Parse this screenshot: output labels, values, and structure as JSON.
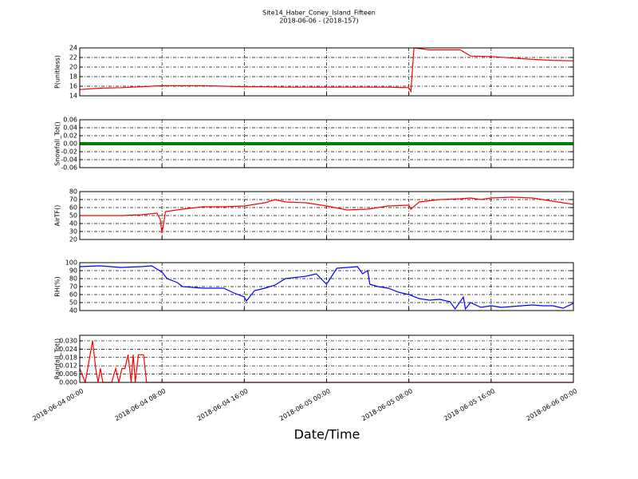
{
  "title": "Site14_Haber_Coney_Island_Fifteen",
  "subtitle": "2018-06-06 - (2018-157)",
  "xlabel": "Date/Time",
  "xlim": [
    "2018-06-04 00:00",
    "2018-06-06 00:00"
  ],
  "xticks": [
    "2018-06-04 00:00",
    "2018-06-04 08:00",
    "2018-06-04 16:00",
    "2018-06-05 00:00",
    "2018-06-05 08:00",
    "2018-06-05 16:00",
    "2018-06-06 00:00"
  ],
  "chart_data": [
    {
      "type": "line",
      "ylabel": "P(unitless)",
      "ylim": [
        14,
        24
      ],
      "yticks": [
        14,
        16,
        18,
        20,
        22,
        24
      ],
      "grid": true,
      "x": [
        "2018-06-04 00:00",
        "2018-06-04 02:00",
        "2018-06-04 04:00",
        "2018-06-04 06:00",
        "2018-06-04 08:00",
        "2018-06-04 10:00",
        "2018-06-04 12:00",
        "2018-06-04 14:00",
        "2018-06-04 16:00",
        "2018-06-04 18:00",
        "2018-06-04 20:00",
        "2018-06-04 22:00",
        "2018-06-05 00:00",
        "2018-06-05 02:00",
        "2018-06-05 04:00",
        "2018-06-05 06:00",
        "2018-06-05 08:00",
        "2018-06-05 08:12",
        "2018-06-05 08:30",
        "2018-06-05 10:00",
        "2018-06-05 12:00",
        "2018-06-05 13:00",
        "2018-06-05 14:00",
        "2018-06-05 16:00",
        "2018-06-05 18:00",
        "2018-06-05 20:00",
        "2018-06-05 22:00",
        "2018-06-06 00:00"
      ],
      "series": [
        {
          "color": "#ff0000",
          "values": [
            15.3,
            15.6,
            15.7,
            15.9,
            16.1,
            16.1,
            16.1,
            16.0,
            15.9,
            15.9,
            15.8,
            15.8,
            15.8,
            15.8,
            15.8,
            15.8,
            15.7,
            14.9,
            24,
            23.6,
            23.6,
            23.6,
            22.3,
            22.2,
            21.9,
            21.6,
            21.4,
            21.3
          ]
        }
      ]
    },
    {
      "type": "line",
      "ylabel": "Snowfall_Tot()",
      "ylim": [
        -0.06,
        0.06
      ],
      "yticks": [
        -0.06,
        -0.04,
        -0.02,
        {
          "value": 0,
          "label": "0.00"
        },
        0.02,
        0.04,
        0.06
      ],
      "grid": true,
      "x": [
        "2018-06-04 00:00",
        "2018-06-04 08:00",
        "2018-06-04 16:00",
        "2018-06-05 00:00",
        "2018-06-05 08:00",
        "2018-06-05 16:00",
        "2018-06-06 00:00"
      ],
      "series": [
        {
          "color": "#008000",
          "values": [
            0,
            0,
            0,
            0,
            0,
            0,
            0
          ]
        }
      ]
    },
    {
      "type": "line",
      "ylabel": "AirTF()",
      "ylim": [
        20,
        80
      ],
      "yticks": [
        20,
        30,
        40,
        50,
        60,
        70,
        80
      ],
      "grid": true,
      "x": [
        "2018-06-04 00:00",
        "2018-06-04 02:00",
        "2018-06-04 04:00",
        "2018-06-04 06:00",
        "2018-06-04 07:30",
        "2018-06-04 07:50",
        "2018-06-04 08:00",
        "2018-06-04 08:20",
        "2018-06-04 10:00",
        "2018-06-04 12:00",
        "2018-06-04 14:00",
        "2018-06-04 16:00",
        "2018-06-04 18:00",
        "2018-06-04 19:00",
        "2018-06-04 20:00",
        "2018-06-04 22:00",
        "2018-06-05 00:00",
        "2018-06-05 02:00",
        "2018-06-05 04:00",
        "2018-06-05 06:00",
        "2018-06-05 08:00",
        "2018-06-05 08:12",
        "2018-06-05 09:00",
        "2018-06-05 11:00",
        "2018-06-05 13:00",
        "2018-06-05 14:00",
        "2018-06-05 15:00",
        "2018-06-05 16:00",
        "2018-06-05 18:00",
        "2018-06-05 20:00",
        "2018-06-05 22:00",
        "2018-06-06 00:00"
      ],
      "series": [
        {
          "color": "#ff0000",
          "values": [
            50,
            50,
            50,
            51,
            53,
            45,
            28,
            55,
            58,
            61,
            61,
            62,
            66,
            70,
            67,
            66,
            62,
            57,
            58,
            62,
            63,
            58,
            67,
            70,
            71,
            72,
            70,
            72,
            73,
            72,
            68,
            64
          ]
        }
      ]
    },
    {
      "type": "line",
      "ylabel": "RH(%)",
      "ylim": [
        40,
        100
      ],
      "yticks": [
        40,
        50,
        60,
        70,
        80,
        90,
        100
      ],
      "grid": true,
      "x": [
        "2018-06-04 00:00",
        "2018-06-04 02:00",
        "2018-06-04 04:00",
        "2018-06-04 06:00",
        "2018-06-04 07:00",
        "2018-06-04 08:00",
        "2018-06-04 08:30",
        "2018-06-04 09:30",
        "2018-06-04 10:00",
        "2018-06-04 12:00",
        "2018-06-04 14:00",
        "2018-06-04 15:00",
        "2018-06-04 16:00",
        "2018-06-04 16:12",
        "2018-06-04 17:00",
        "2018-06-04 18:00",
        "2018-06-04 19:00",
        "2018-06-04 20:00",
        "2018-06-04 22:00",
        "2018-06-04 23:00",
        "2018-06-05 00:00",
        "2018-06-05 01:00",
        "2018-06-05 02:00",
        "2018-06-05 03:00",
        "2018-06-05 03:30",
        "2018-06-05 04:00",
        "2018-06-05 04:12",
        "2018-06-05 05:00",
        "2018-06-05 06:00",
        "2018-06-05 07:00",
        "2018-06-05 08:00",
        "2018-06-05 09:00",
        "2018-06-05 10:00",
        "2018-06-05 11:00",
        "2018-06-05 12:00",
        "2018-06-05 12:30",
        "2018-06-05 13:18",
        "2018-06-05 13:30",
        "2018-06-05 14:00",
        "2018-06-05 15:00",
        "2018-06-05 16:00",
        "2018-06-05 17:00",
        "2018-06-05 18:00",
        "2018-06-05 19:00",
        "2018-06-05 20:00",
        "2018-06-05 21:00",
        "2018-06-05 22:00",
        "2018-06-05 23:00",
        "2018-06-06 00:00"
      ],
      "series": [
        {
          "color": "#0000ff",
          "values": [
            95,
            96,
            94,
            95,
            96,
            88,
            80,
            75,
            70,
            68,
            68,
            62,
            57,
            52,
            65,
            68,
            72,
            80,
            83,
            86,
            73,
            93,
            94,
            95,
            86,
            90,
            73,
            70,
            68,
            63,
            60,
            55,
            53,
            54,
            51,
            42,
            57,
            42,
            50,
            44,
            46,
            44,
            45,
            46,
            47,
            46,
            46,
            43,
            49
          ]
        }
      ]
    },
    {
      "type": "line",
      "ylabel": "Rainfall_Tot()",
      "ylim": [
        0,
        0.034
      ],
      "yticks": [
        {
          "value": 0,
          "label": "0.000"
        },
        0.006,
        0.012,
        0.018,
        0.024,
        {
          "value": 0.03,
          "label": "0.030"
        }
      ],
      "grid": true,
      "x": [
        "2018-06-04 00:00",
        "2018-06-04 00:32",
        "2018-06-04 01:15",
        "2018-06-04 01:33",
        "2018-06-04 01:47",
        "2018-06-04 02:00",
        "2018-06-04 02:15",
        "2018-06-04 03:06",
        "2018-06-04 03:30",
        "2018-06-04 03:48",
        "2018-06-04 04:06",
        "2018-06-04 04:24",
        "2018-06-04 04:42",
        "2018-06-04 05:00",
        "2018-06-04 05:12",
        "2018-06-04 05:24",
        "2018-06-04 05:42",
        "2018-06-04 06:12",
        "2018-06-04 06:30",
        "2018-06-06 00:00"
      ],
      "series": [
        {
          "color": "#ff0000",
          "values": [
            0.01,
            0,
            0.03,
            0.01,
            0,
            0.01,
            0,
            0,
            0.01,
            0,
            0.01,
            0.01,
            0.02,
            0,
            0.02,
            0,
            0.02,
            0.02,
            0,
            0
          ]
        }
      ]
    }
  ]
}
